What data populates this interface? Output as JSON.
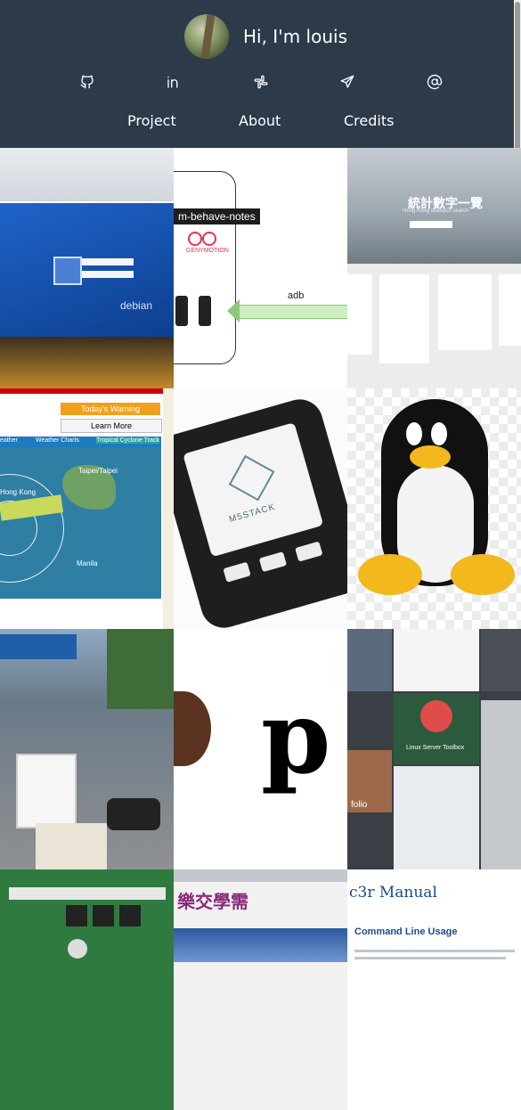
{
  "header": {
    "greeting": "Hi, I'm louis",
    "social_icons": [
      "github-icon",
      "linkedin-icon",
      "slack-icon",
      "send-icon",
      "at-icon"
    ],
    "nav": [
      {
        "label": "Project"
      },
      {
        "label": "About"
      },
      {
        "label": "Credits"
      }
    ]
  },
  "tiles": {
    "t1": {
      "label": "debian"
    },
    "t2": {
      "caption": "m-behave-notes",
      "logo": "GENYMOTION",
      "arrow_label": "adb"
    },
    "t3": {
      "title": "統計數字一覽",
      "subtitle": "Hong Kong statistics search"
    },
    "t4": {
      "warning": "Today's Warning",
      "learn_more": "Learn More",
      "tabs": [
        "eather",
        "Weather Charts",
        "Tropical Cyclone Track"
      ],
      "places": [
        "Taipei/Taipei",
        "Hong Kong",
        "Manila"
      ]
    },
    "t5": {
      "brand": "M5STACK"
    },
    "t8": {
      "text": "p"
    },
    "t9": {
      "label": "Linux Server Toolbox",
      "folio": "folio"
    },
    "t11": {
      "text": "樂交學需"
    },
    "t12": {
      "title": "c3r Manual",
      "heading": "Command Line Usage"
    }
  },
  "colors": {
    "header_bg": "#2d3a4a",
    "link": "#1a4c8f"
  }
}
